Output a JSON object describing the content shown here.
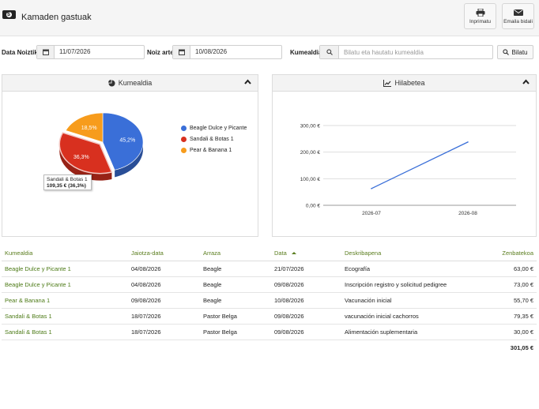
{
  "app": {
    "title": "Kamaden gastuak"
  },
  "toolbar": {
    "print_label": "Inprimatu",
    "email_label": "Emaila bidali"
  },
  "filters": {
    "from_label": "Data Noiztik",
    "from_value": "11/07/2026",
    "to_label": "Noiz arte",
    "to_value": "10/08/2026",
    "client_label": "Kumealdia:",
    "search_placeholder": "Bilatu eta hautatu kumealdia",
    "search_button": "Bilatu"
  },
  "pie_panel": {
    "title": "Kumealdia",
    "tooltip_name": "Sandali & Botas 1",
    "tooltip_value": "109,35 € (36,3%)"
  },
  "line_panel": {
    "title": "Hilabetea"
  },
  "chart_data": [
    {
      "type": "pie",
      "title": "Kumealdia",
      "slices": [
        {
          "label": "Beagle Dulce y Picante",
          "value": 45.2,
          "display": "45,2%",
          "color": "#3a6fd8"
        },
        {
          "label": "Sandali & Botas 1",
          "value": 36.3,
          "display": "36,3%",
          "color": "#d8301f"
        },
        {
          "label": "Pear & Banana 1",
          "value": 18.5,
          "display": "18,5%",
          "color": "#f79c1c"
        }
      ]
    },
    {
      "type": "line",
      "title": "Hilabetea",
      "categories": [
        "2026-07",
        "2026-08"
      ],
      "values": [
        63.0,
        238.0
      ],
      "yticks": [
        "0,00 €",
        "100,00 €",
        "200,00 €",
        "300,00 €"
      ],
      "ylim": [
        0,
        300
      ],
      "color": "#3a6fd8",
      "grid": true
    }
  ],
  "table": {
    "headers": [
      "Kumealdia",
      "Jaiotza-data",
      "Arraza",
      "Data",
      "Deskribapena",
      "Zenbatekoa"
    ],
    "rows": [
      [
        "Beagle Dulce y Picante 1",
        "04/08/2026",
        "Beagle",
        "21/07/2026",
        "Ecografía",
        "63,00 €"
      ],
      [
        "Beagle Dulce y Picante 1",
        "04/08/2026",
        "Beagle",
        "09/08/2026",
        "Inscripción registro y solicitud pedigree",
        "73,00 €"
      ],
      [
        "Pear & Banana 1",
        "09/08/2026",
        "Beagle",
        "10/08/2026",
        "Vacunación inicial",
        "55,70 €"
      ],
      [
        "Sandali & Botas 1",
        "18/07/2026",
        "Pastor Belga",
        "09/08/2026",
        "vacunación inicial cachorros",
        "79,35 €"
      ],
      [
        "Sandali & Botas 1",
        "18/07/2026",
        "Pastor Belga",
        "09/08/2026",
        "Alimentación suplementaria",
        "30,00 €"
      ]
    ],
    "total": "301,05 €"
  }
}
